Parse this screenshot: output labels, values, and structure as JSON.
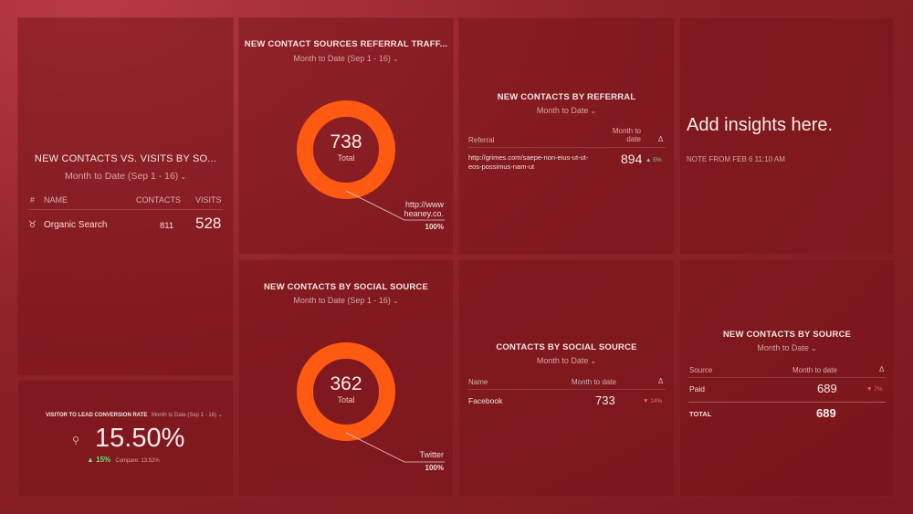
{
  "tiles": {
    "contacts_vs_visits": {
      "title": "NEW CONTACTS VS. VISITS BY SO...",
      "subtitle": "Month to Date (Sep 1 - 16)",
      "col_hash": "#",
      "col_name": "NAME",
      "col_contacts": "CONTACTS",
      "col_visits": "VISITS",
      "rows": [
        {
          "name": "Organic Search",
          "contacts": "811",
          "visits": "528"
        }
      ]
    },
    "conversion_rate": {
      "title": "VISITOR TO LEAD CONVERSION RATE",
      "subtitle": "Month to Date (Sep 1 - 16)",
      "value": "15.50%",
      "change": "▲ 15%",
      "compare": "Compare: 13.52%"
    },
    "referral_traffic": {
      "title": "NEW CONTACT SOURCES REFERRAL TRAFF...",
      "subtitle": "Month to Date (Sep 1 - 16)",
      "total": "738",
      "total_label": "Total",
      "callout_line1": "http://www",
      "callout_line2": "heaney.co.",
      "callout_pct": "100%",
      "donut_color": "#ff5a12",
      "donut_fraction": 1.0
    },
    "social_source_donut": {
      "title": "NEW CONTACTS BY SOCIAL SOURCE",
      "subtitle": "Month to Date (Sep 1 - 16)",
      "total": "362",
      "total_label": "Total",
      "callout_line1": "Twitter",
      "callout_pct": "100%",
      "donut_color": "#ff5a12",
      "donut_fraction": 1.0
    },
    "by_referral": {
      "title": "NEW CONTACTS BY REFERRAL",
      "subtitle": "Month to Date",
      "col_referral": "Referral",
      "col_mtd_line1": "Month to",
      "col_mtd_line2": "date",
      "col_delta": "Δ",
      "row_url_line1": "http://grimes.com/saepe-non-eius-ut-ut-",
      "row_url_line2": "eos-possimus-nam-ut",
      "row_value": "894",
      "row_change": "▲ 5%"
    },
    "insights": {
      "text": "Add insights here.",
      "note": "NOTE FROM FEB 6 11:10 AM"
    },
    "contacts_by_social": {
      "title": "CONTACTS BY SOCIAL SOURCE",
      "subtitle": "Month to Date",
      "col_name": "Name",
      "col_mtd": "Month to date",
      "col_delta": "Δ",
      "row_name": "Facebook",
      "row_value": "733",
      "row_change": "▼ 14%"
    },
    "contacts_by_source": {
      "title": "NEW CONTACTS BY SOURCE",
      "subtitle": "Month to Date",
      "col_source": "Source",
      "col_mtd": "Month to date",
      "col_delta": "Δ",
      "row_name": "Paid",
      "row_value": "689",
      "row_change": "▼ 7%",
      "total_label": "TOTAL",
      "total_value": "689"
    }
  }
}
